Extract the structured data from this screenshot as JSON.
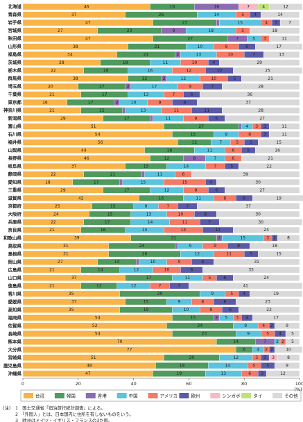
{
  "chart_data": {
    "type": "stacked-barh",
    "categories": [
      "北海道",
      "青森県",
      "岩手県",
      "宮城県",
      "秋田県",
      "山形県",
      "福島県",
      "茨城県",
      "栃木県",
      "群馬県",
      "埼玉県",
      "千葉県",
      "東京都",
      "神奈川県",
      "新潟県",
      "富山県",
      "石川県",
      "福井県",
      "山梨県",
      "長野県",
      "岐阜県",
      "静岡県",
      "愛知県",
      "三重県",
      "滋賀県",
      "京都府",
      "大阪府",
      "兵庫県",
      "奈良県",
      "和歌山県",
      "鳥取県",
      "島根県",
      "岡山県",
      "広島県",
      "山口県",
      "徳島県",
      "香川県",
      "愛媛県",
      "高知県",
      "福岡県",
      "佐賀県",
      "長崎県",
      "熊本県",
      "大分県",
      "宮崎県",
      "鹿児島県",
      "沖縄県"
    ],
    "series": [
      {
        "name": "台湾",
        "color": "#f8b448",
        "values": [
          46,
          37,
          47,
          27,
          47,
          38,
          34,
          28,
          22,
          38,
          20,
          21,
          16,
          21,
          29,
          51,
          54,
          56,
          44,
          46,
          37,
          22,
          18,
          29,
          42,
          25,
          24,
          22,
          21,
          39,
          31,
          31,
          27,
          21,
          37,
          21,
          35,
          37,
          35,
          54,
          52,
          54,
          70,
          77,
          51,
          48,
          47
        ]
      },
      {
        "name": "韓国",
        "color": "#4f9a5c",
        "values": [
          16,
          26,
          23,
          23,
          27,
          21,
          21,
          18,
          16,
          12,
          17,
          17,
          17,
          15,
          17,
          27,
          15,
          12,
          18,
          12,
          15,
          21,
          17,
          17,
          16,
          15,
          15,
          17,
          16,
          31,
          24,
          26,
          14,
          14,
          17,
          13,
          29,
          15,
          19,
          15,
          24,
          23,
          14,
          6,
          20,
          19,
          19
        ]
      },
      {
        "name": "香港",
        "color": "#8d6bb0",
        "values": [
          16,
          null,
          1,
          9,
          7,
          null,
          2,
          null,
          null,
          2,
          2,
          null,
          2,
          1,
          1,
          1,
          null,
          null,
          null,
          8,
          null,
          1,
          1,
          null,
          null,
          null,
          null,
          null,
          null,
          2,
          1,
          null,
          1,
          null,
          null,
          null,
          null,
          null,
          null,
          2,
          null,
          null,
          7,
          null,
          null,
          null,
          null
        ]
      },
      {
        "name": "中国",
        "color": "#5cc3dc",
        "values": [
          null,
          14,
          15,
          18,
          5,
          10,
          13,
          11,
          16,
          12,
          17,
          13,
          10,
          13,
          11,
          4,
          9,
          7,
          11,
          7,
          14,
          11,
          15,
          12,
          11,
          9,
          13,
          14,
          14,
          15,
          9,
          12,
          10,
          12,
          11,
          12,
          9,
          9,
          10,
          5,
          9,
          9,
          2,
          4,
          12,
          14,
          13
        ]
      },
      {
        "name": "アメリカ",
        "color": "#f27a66",
        "values": [
          null,
          5,
          4,
          5,
          3,
          9,
          10,
          10,
          12,
          10,
          9,
          7,
          9,
          11,
          9,
          3,
          8,
          5,
          6,
          6,
          7,
          6,
          15,
          9,
          8,
          7,
          10,
          11,
          14,
          3,
          9,
          11,
          9,
          10,
          5,
          7,
          5,
          8,
          8,
          3,
          4,
          5,
          2,
          2,
          3,
          5,
          6
        ]
      },
      {
        "name": "欧州",
        "color": "#5b5aa6",
        "values": [
          null,
          4,
          3,
          null,
          null,
          6,
          7,
          4,
          10,
          5,
          7,
          6,
          9,
          11,
          6,
          3,
          3,
          5,
          5,
          null,
          5,
          null,
          4,
          6,
          6,
          7,
          8,
          7,
          11,
          2,
          8,
          5,
          8,
          8,
          6,
          7,
          4,
          8,
          6,
          4,
          2,
          4,
          null,
          2,
          3,
          5,
          3
        ]
      },
      {
        "name": "シンガポール",
        "color": "#f7b9c3",
        "values": [
          7,
          null,
          null,
          null,
          null,
          null,
          null,
          null,
          null,
          null,
          null,
          null,
          null,
          null,
          null,
          null,
          null,
          null,
          null,
          null,
          null,
          null,
          null,
          null,
          null,
          null,
          null,
          null,
          null,
          null,
          null,
          null,
          null,
          null,
          null,
          null,
          null,
          null,
          null,
          null,
          null,
          null,
          null,
          null,
          3,
          null,
          null
        ]
      },
      {
        "name": "タイ",
        "color": "#bde27c",
        "values": [
          4,
          null,
          null,
          null,
          null,
          null,
          null,
          null,
          null,
          null,
          null,
          null,
          null,
          null,
          null,
          null,
          null,
          null,
          null,
          null,
          null,
          null,
          null,
          null,
          null,
          null,
          null,
          null,
          null,
          null,
          null,
          null,
          null,
          null,
          null,
          null,
          null,
          null,
          null,
          null,
          null,
          null,
          null,
          null,
          null,
          null,
          null
        ]
      },
      {
        "name": "その他",
        "color": "#d9d9d9",
        "values": [
          12,
          14,
          7,
          18,
          11,
          17,
          13,
          29,
          25,
          21,
          28,
          36,
          37,
          28,
          27,
          11,
          11,
          15,
          16,
          21,
          22,
          39,
          30,
          27,
          19,
          37,
          30,
          30,
          24,
          8,
          18,
          15,
          31,
          35,
          24,
          41,
          19,
          23,
          22,
          17,
          9,
          5,
          5,
          10,
          8,
          9,
          12
        ]
      }
    ],
    "xlim": [
      0,
      100
    ],
    "xticks": [
      0,
      20,
      40,
      60,
      80,
      100
    ],
    "xlabel": "(%)",
    "notes_label": "(注)",
    "notes": [
      "1　国土交通省「宿泊旅行統計調査」による。",
      "2　「外国人」とは、日本国内に住所を有しないものをいう。",
      "3　欧州はドイツ・イギリス・フランスの3か国。"
    ]
  }
}
